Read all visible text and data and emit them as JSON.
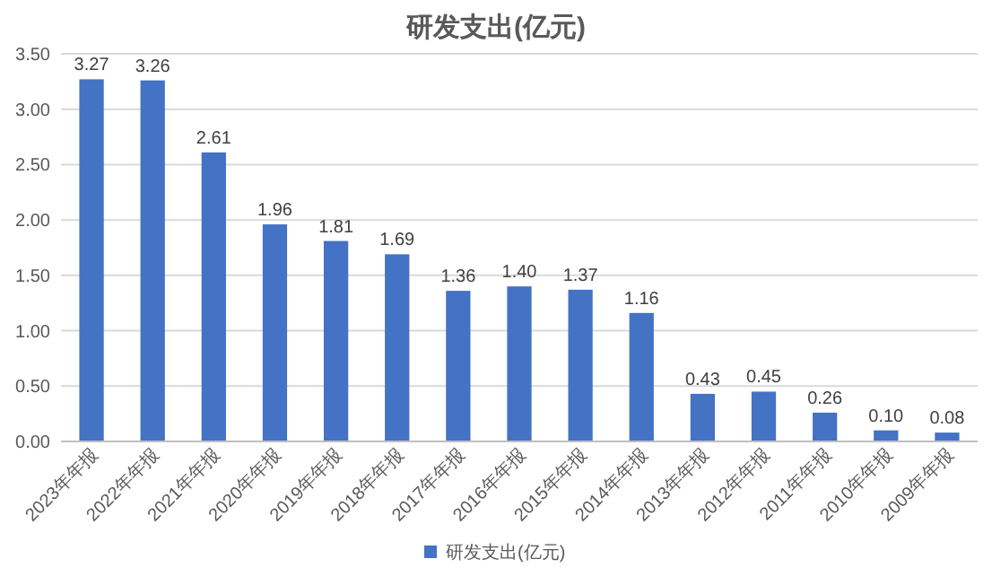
{
  "chart_data": {
    "type": "bar",
    "title": "研发支出(亿元)",
    "categories": [
      "2023年年报",
      "2022年年报",
      "2021年年报",
      "2020年年报",
      "2019年年报",
      "2018年年报",
      "2017年年报",
      "2016年年报",
      "2015年年报",
      "2014年年报",
      "2013年年报",
      "2012年年报",
      "2011年年报",
      "2010年年报",
      "2009年年报"
    ],
    "series": [
      {
        "name": "研发支出(亿元)",
        "color": "#4472c4",
        "values": [
          3.27,
          3.26,
          2.61,
          1.96,
          1.81,
          1.69,
          1.36,
          1.4,
          1.37,
          1.16,
          0.43,
          0.45,
          0.26,
          0.1,
          0.08
        ],
        "value_labels": [
          "3.27",
          "3.26",
          "2.61",
          "1.96",
          "1.81",
          "1.69",
          "1.36",
          "1.40",
          "1.37",
          "1.16",
          "0.43",
          "0.45",
          "0.26",
          "0.10",
          "0.08"
        ]
      }
    ],
    "ylim": [
      0,
      3.5
    ],
    "yticks": [
      {
        "value": 0,
        "label": "0.00"
      },
      {
        "value": 0.5,
        "label": "0.50"
      },
      {
        "value": 1,
        "label": "1.00"
      },
      {
        "value": 1.5,
        "label": "1.50"
      },
      {
        "value": 2,
        "label": "2.00"
      },
      {
        "value": 2.5,
        "label": "2.50"
      },
      {
        "value": 3,
        "label": "3.00"
      },
      {
        "value": 3.5,
        "label": "3.50"
      }
    ],
    "grid": "y",
    "legend": "bottom"
  }
}
